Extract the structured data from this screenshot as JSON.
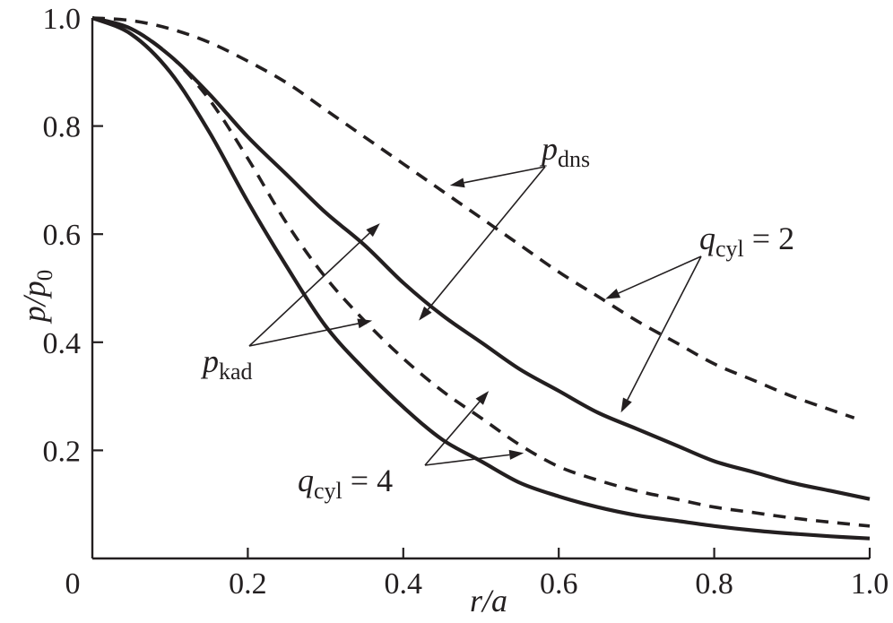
{
  "chart_data": {
    "type": "line",
    "xlabel": "r/a",
    "ylabel": "p/p0",
    "xlim": [
      0,
      1.0
    ],
    "ylim": [
      0,
      1.0
    ],
    "grid": false,
    "x_ticks": [
      "0",
      "0.2",
      "0.4",
      "0.6",
      "0.8",
      "1.0"
    ],
    "y_ticks": [
      "0.2",
      "0.4",
      "0.6",
      "0.8",
      "1.0"
    ],
    "x_tick_values": [
      0,
      0.2,
      0.4,
      0.6,
      0.8,
      1.0
    ],
    "y_tick_values": [
      0.2,
      0.4,
      0.6,
      0.8,
      1.0
    ],
    "series": [
      {
        "style": "solid",
        "x": [
          0,
          0.05,
          0.1,
          0.15,
          0.2,
          0.25,
          0.3,
          0.35,
          0.4,
          0.45,
          0.5,
          0.55,
          0.6,
          0.65,
          0.7,
          0.75,
          0.8,
          0.85,
          0.9,
          0.95,
          1.0
        ],
        "y": [
          1.0,
          0.98,
          0.93,
          0.86,
          0.78,
          0.71,
          0.64,
          0.58,
          0.51,
          0.45,
          0.4,
          0.35,
          0.31,
          0.27,
          0.24,
          0.21,
          0.18,
          0.16,
          0.14,
          0.125,
          0.11
        ]
      },
      {
        "style": "dashed",
        "x": [
          0,
          0.05,
          0.1,
          0.15,
          0.2,
          0.25,
          0.3,
          0.35,
          0.4,
          0.45,
          0.5,
          0.55,
          0.6,
          0.65,
          0.7,
          0.75,
          0.8,
          0.85,
          0.9,
          0.95,
          0.98
        ],
        "y": [
          1.0,
          0.995,
          0.98,
          0.955,
          0.92,
          0.88,
          0.83,
          0.78,
          0.73,
          0.68,
          0.63,
          0.58,
          0.53,
          0.485,
          0.44,
          0.4,
          0.36,
          0.33,
          0.3,
          0.275,
          0.26
        ]
      },
      {
        "style": "solid",
        "x": [
          0,
          0.05,
          0.1,
          0.15,
          0.2,
          0.25,
          0.3,
          0.35,
          0.4,
          0.45,
          0.5,
          0.55,
          0.6,
          0.65,
          0.7,
          0.75,
          0.8,
          0.85,
          0.9,
          0.95,
          1.0
        ],
        "y": [
          1.0,
          0.97,
          0.9,
          0.79,
          0.66,
          0.54,
          0.43,
          0.35,
          0.28,
          0.22,
          0.18,
          0.14,
          0.115,
          0.095,
          0.08,
          0.07,
          0.06,
          0.052,
          0.046,
          0.041,
          0.037
        ]
      },
      {
        "style": "dashed",
        "x": [
          0,
          0.05,
          0.1,
          0.15,
          0.2,
          0.25,
          0.3,
          0.35,
          0.4,
          0.45,
          0.5,
          0.55,
          0.6,
          0.65,
          0.7,
          0.75,
          0.8,
          0.85,
          0.9,
          0.95,
          1.0
        ],
        "y": [
          1.0,
          0.98,
          0.93,
          0.85,
          0.74,
          0.62,
          0.52,
          0.44,
          0.37,
          0.31,
          0.26,
          0.21,
          0.17,
          0.145,
          0.125,
          0.11,
          0.095,
          0.085,
          0.075,
          0.067,
          0.06
        ]
      }
    ],
    "annotations": [
      {
        "id": "pdns",
        "text": "p",
        "subscript": "dns",
        "points_to": [
          [
            0.46,
            0.69
          ],
          [
            0.42,
            0.44
          ]
        ]
      },
      {
        "id": "qcyl2",
        "text": "q",
        "subscript": "cyl",
        "suffix": " = 2",
        "points_to": [
          [
            0.66,
            0.48
          ],
          [
            0.68,
            0.27
          ]
        ]
      },
      {
        "id": "pkad",
        "text": "p",
        "subscript": "kad",
        "points_to": [
          [
            0.37,
            0.62
          ],
          [
            0.36,
            0.44
          ]
        ]
      },
      {
        "id": "qcyl4",
        "text": "q",
        "subscript": "cyl",
        "suffix": " = 4",
        "points_to": [
          [
            0.51,
            0.31
          ],
          [
            0.555,
            0.195
          ]
        ]
      }
    ]
  }
}
